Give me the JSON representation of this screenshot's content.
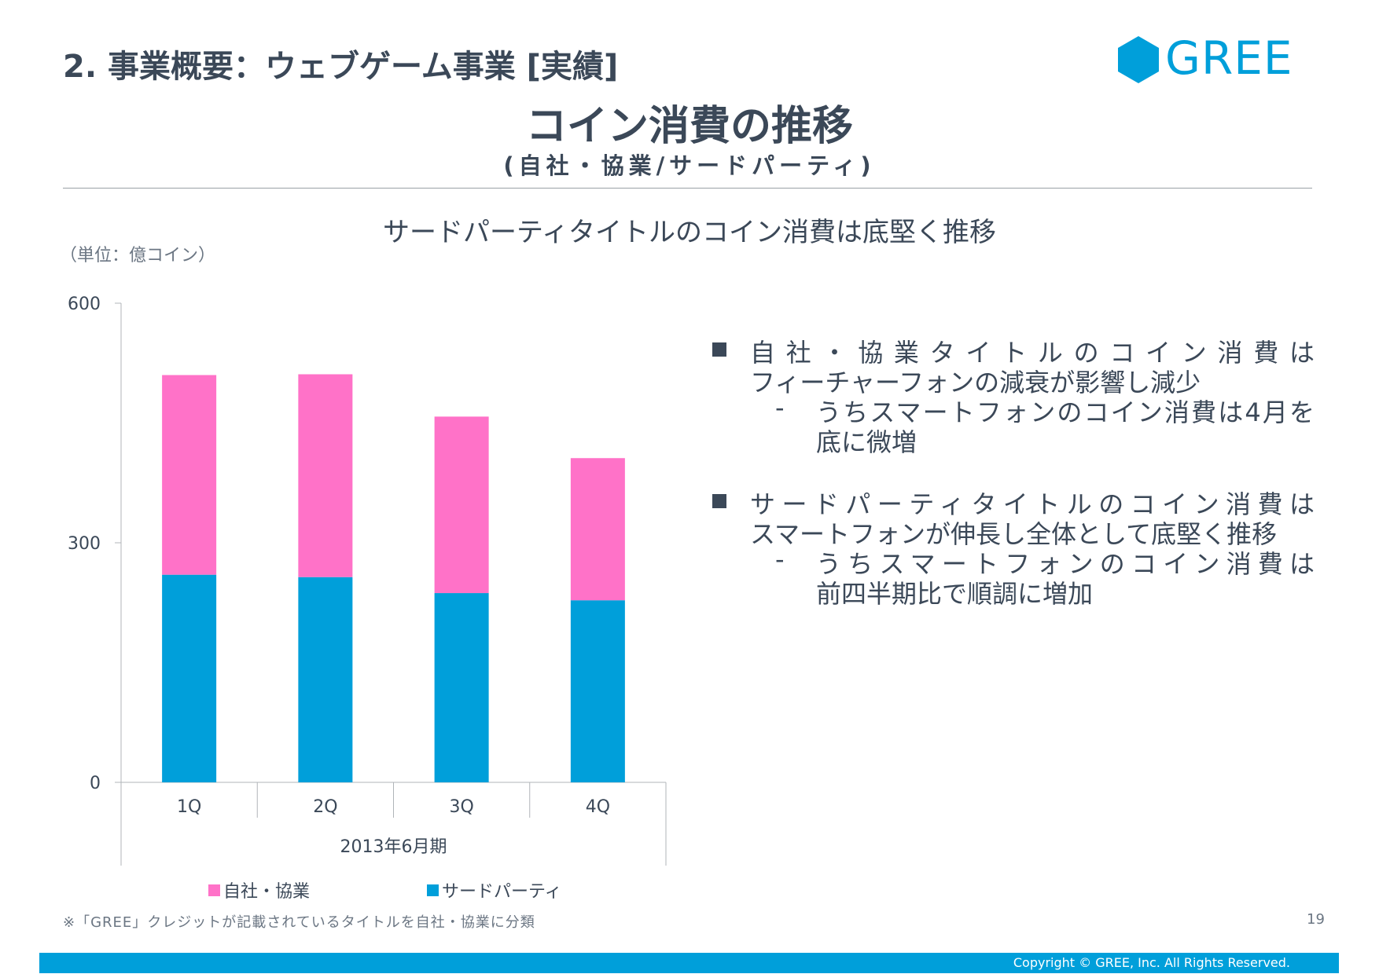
{
  "header": {
    "section_title": "2. 事業概要：ウェブゲーム事業 [実績]",
    "logo_text": "GREE",
    "title": "コイン消費の推移",
    "subtitle": "(自社・協業/サードパーティ)"
  },
  "headline": "サードパーティタイトルのコイン消費は底堅く推移",
  "colors": {
    "brand": "#009fda",
    "pink": "#ff72c8",
    "text": "#3b4858"
  },
  "chart_data": {
    "type": "bar",
    "stacked": true,
    "unit_label": "（単位：億コイン）",
    "categories": [
      "1Q",
      "2Q",
      "3Q",
      "4Q"
    ],
    "group_label": "2013年6月期",
    "yticks": [
      "0",
      "300",
      "600"
    ],
    "ylim": [
      0,
      600
    ],
    "grid": false,
    "legend_position": "bottom",
    "series": [
      {
        "name": "サードパーティ",
        "color": "#009fda",
        "values": [
          260,
          257,
          237,
          228
        ]
      },
      {
        "name": "自社・協業",
        "color": "#ff72c8",
        "values": [
          250,
          254,
          221,
          178
        ]
      }
    ]
  },
  "bullets": [
    {
      "lines": [
        "自社・協業タイトルのコイン消費は",
        "フィーチャーフォンの減衰が影響し減少"
      ],
      "sub": {
        "dash": "-",
        "lines": [
          "うちスマートフォンのコイン消費は4月を",
          "底に微増"
        ]
      }
    },
    {
      "lines": [
        "サードパーティタイトルのコイン消費は",
        "スマートフォンが伸長し全体として底堅く推移"
      ],
      "sub": {
        "dash": "-",
        "lines": [
          "うちスマートフォンのコイン消費は",
          "前四半期比で順調に増加"
        ]
      }
    }
  ],
  "footnote": "※「GREE」クレジットが記載されているタイトルを自社・協業に分類",
  "page_number": "19",
  "copyright": "Copyright © GREE, Inc. All Rights Reserved."
}
